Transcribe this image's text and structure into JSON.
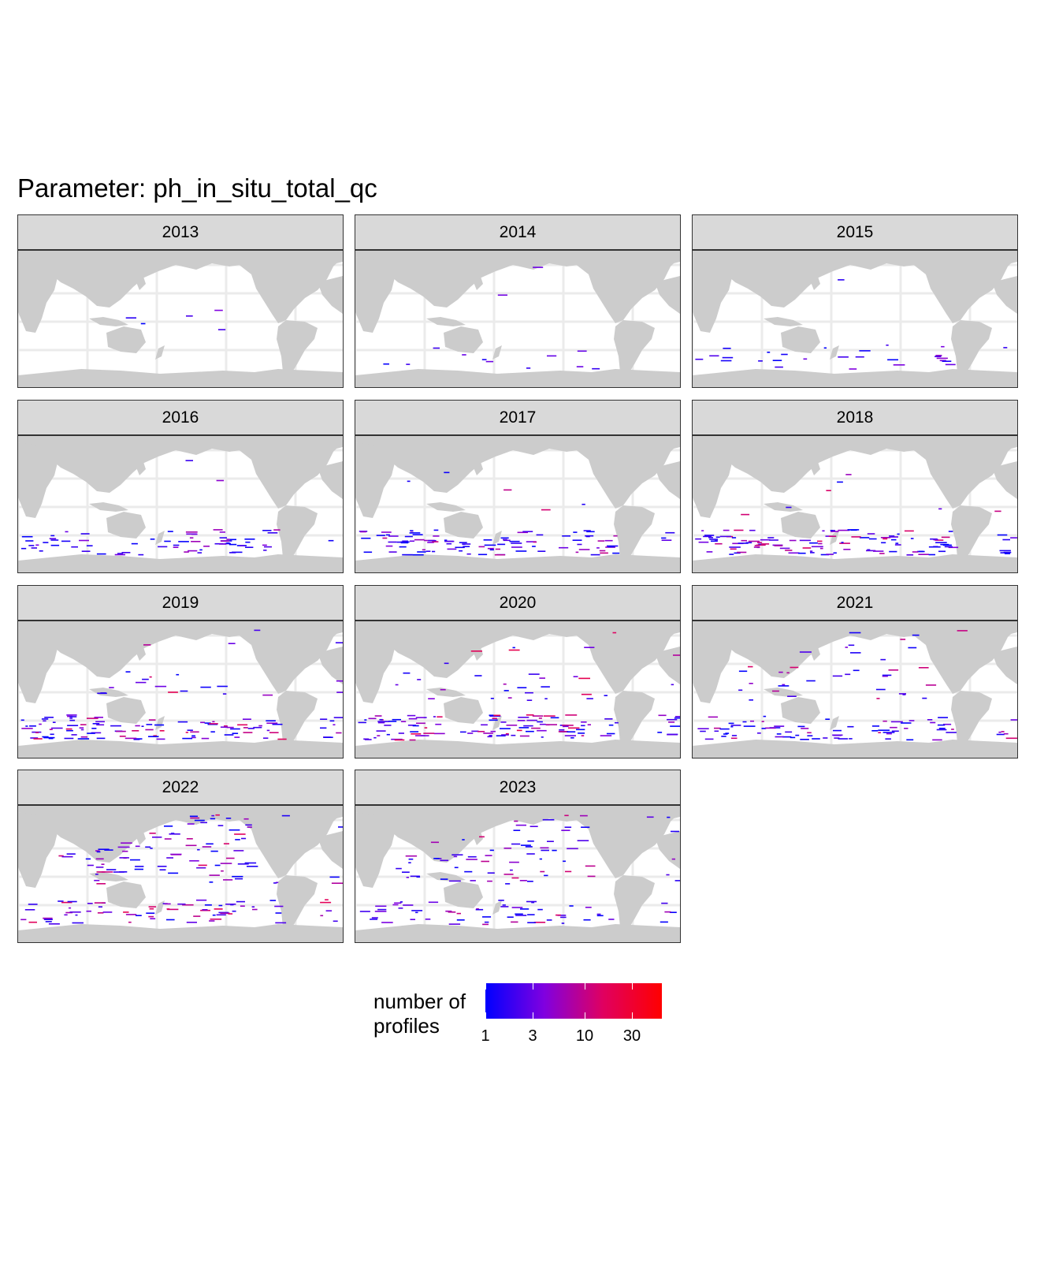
{
  "title": "Parameter: ph_in_situ_total_qc",
  "colors": {
    "land": "#cccccc",
    "ocean": "#ffffff",
    "grid": "#ebebeb",
    "strip_bg": "#d9d9d9",
    "low": "#0000ff",
    "high": "#ff0000"
  },
  "facets": [
    {
      "year": "2013",
      "activity": 0.02,
      "regions": {
        "south": 0.0,
        "tropics": 0.05,
        "north": 0.0
      }
    },
    {
      "year": "2014",
      "activity": 0.05,
      "regions": {
        "south": 0.08,
        "tropics": 0.0,
        "north": 0.02
      }
    },
    {
      "year": "2015",
      "activity": 0.12,
      "regions": {
        "south": 0.2,
        "tropics": 0.0,
        "north": 0.02
      }
    },
    {
      "year": "2016",
      "activity": 0.35,
      "regions": {
        "south": 0.6,
        "tropics": 0.0,
        "north": 0.03
      }
    },
    {
      "year": "2017",
      "activity": 0.55,
      "regions": {
        "south": 0.9,
        "tropics": 0.02,
        "north": 0.02
      }
    },
    {
      "year": "2018",
      "activity": 0.65,
      "regions": {
        "south": 1.0,
        "tropics": 0.05,
        "north": 0.03
      }
    },
    {
      "year": "2019",
      "activity": 0.8,
      "regions": {
        "south": 1.0,
        "tropics": 0.15,
        "north": 0.08
      }
    },
    {
      "year": "2020",
      "activity": 0.8,
      "regions": {
        "south": 1.0,
        "tropics": 0.2,
        "north": 0.1
      }
    },
    {
      "year": "2021",
      "activity": 0.6,
      "regions": {
        "south": 0.7,
        "tropics": 0.25,
        "north": 0.2
      }
    },
    {
      "year": "2022",
      "activity": 0.75,
      "regions": {
        "south": 0.6,
        "tropics": 0.5,
        "north": 0.6
      }
    },
    {
      "year": "2023",
      "activity": 0.6,
      "regions": {
        "south": 0.45,
        "tropics": 0.45,
        "north": 0.5
      }
    }
  ],
  "legend": {
    "title_line1": "number of",
    "title_line2": "profiles",
    "scale": "log10",
    "min": 1,
    "max": 60,
    "breaks": [
      1,
      3,
      10,
      30
    ],
    "labels": [
      "1",
      "3",
      "10",
      "30"
    ]
  }
}
